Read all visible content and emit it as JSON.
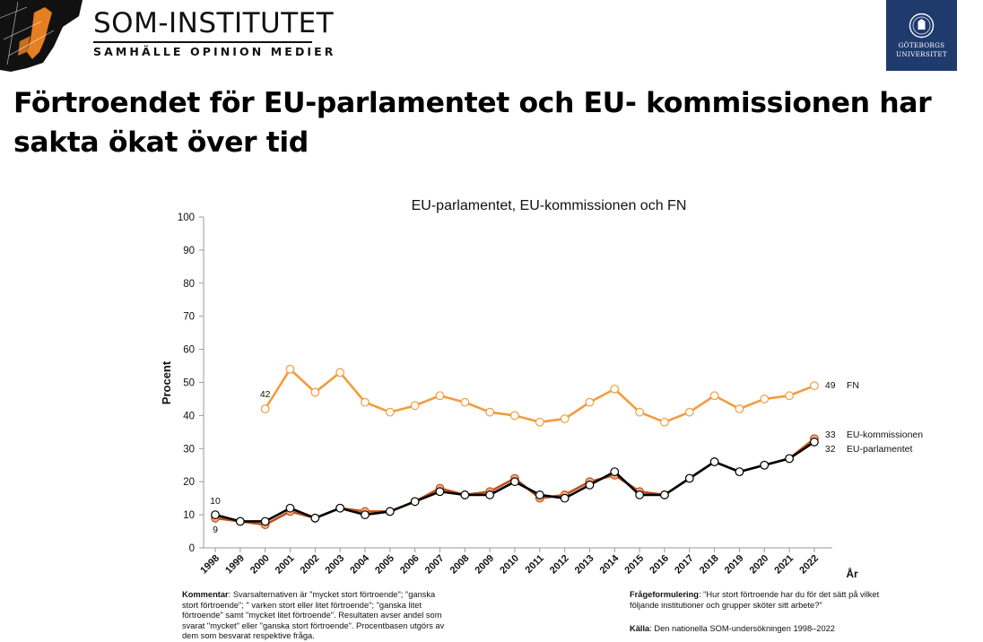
{
  "header": {
    "brand_name": "SOM-INSTITUTET",
    "tagline": "SAMHÄLLE OPINION MEDIER",
    "university_line1": "GÖTEBORGS",
    "university_line2": "UNIVERSITET"
  },
  "slide": {
    "title_line1": "Förtroendet för EU-parlamentet och EU- kommissionen har",
    "title_line2": "sakta ökat över tid"
  },
  "chart_data": {
    "type": "line",
    "title": "EU-parlamentet, EU-kommissionen och FN",
    "ylabel": "Procent",
    "xlabel": "År",
    "ylim": [
      0,
      100
    ],
    "yticks": [
      0,
      10,
      20,
      30,
      40,
      50,
      60,
      70,
      80,
      90,
      100
    ],
    "categories": [
      "1998",
      "1999",
      "2000",
      "2001",
      "2002",
      "2003",
      "2004",
      "2005",
      "2006",
      "2007",
      "2008",
      "2009",
      "2010",
      "2011",
      "2012",
      "2013",
      "2014",
      "2015",
      "2016",
      "2017",
      "2018",
      "2019",
      "2020",
      "2021",
      "2022"
    ],
    "series": [
      {
        "name": "FN",
        "color": "#f39c3c",
        "values": [
          null,
          null,
          42,
          54,
          47,
          53,
          44,
          41,
          43,
          46,
          44,
          41,
          40,
          38,
          39,
          44,
          48,
          41,
          38,
          41,
          46,
          42,
          45,
          46,
          49
        ],
        "start_label": "42",
        "end_label": "49"
      },
      {
        "name": "EU-kommissionen",
        "color": "#c0501a",
        "values": [
          9,
          8,
          7,
          11,
          9,
          12,
          11,
          11,
          14,
          18,
          16,
          17,
          21,
          15,
          16,
          20,
          22,
          17,
          16,
          21,
          26,
          23,
          25,
          27,
          33
        ],
        "start_label": "9",
        "end_label": "33"
      },
      {
        "name": "EU-parlamentet",
        "color": "#000000",
        "values": [
          10,
          8,
          8,
          12,
          9,
          12,
          10,
          11,
          14,
          17,
          16,
          16,
          20,
          16,
          15,
          19,
          23,
          16,
          16,
          21,
          26,
          23,
          25,
          27,
          32
        ],
        "start_label": "10",
        "end_label": "32"
      }
    ]
  },
  "notes": {
    "comment_label": "Kommentar",
    "comment_text_1": ": Svarsalternativen är \"mycket stort förtroende\"; \"ganska",
    "comment_text_2": "stort förtroende\"; \" varken stort eller litet förtroende\"; \"ganska litet",
    "comment_text_3": "förtroende\" samt \"mycket litet förtroende\". Resultaten avser andel som",
    "comment_text_4": "svarat \"mycket\" eller \"ganska stort förtroende\". Procentbasen utgörs av",
    "comment_text_5": "dem som besvarat respektive fråga.",
    "question_label": "Frågeformulering",
    "question_text_1": ": \"Hur stort förtroende har du för det sätt på vilket",
    "question_text_2": "följande institutioner och grupper sköter sitt arbete?\"",
    "source_label": "Källa",
    "source_text": ": Den nationella SOM-undersökningen 1998–2022"
  }
}
